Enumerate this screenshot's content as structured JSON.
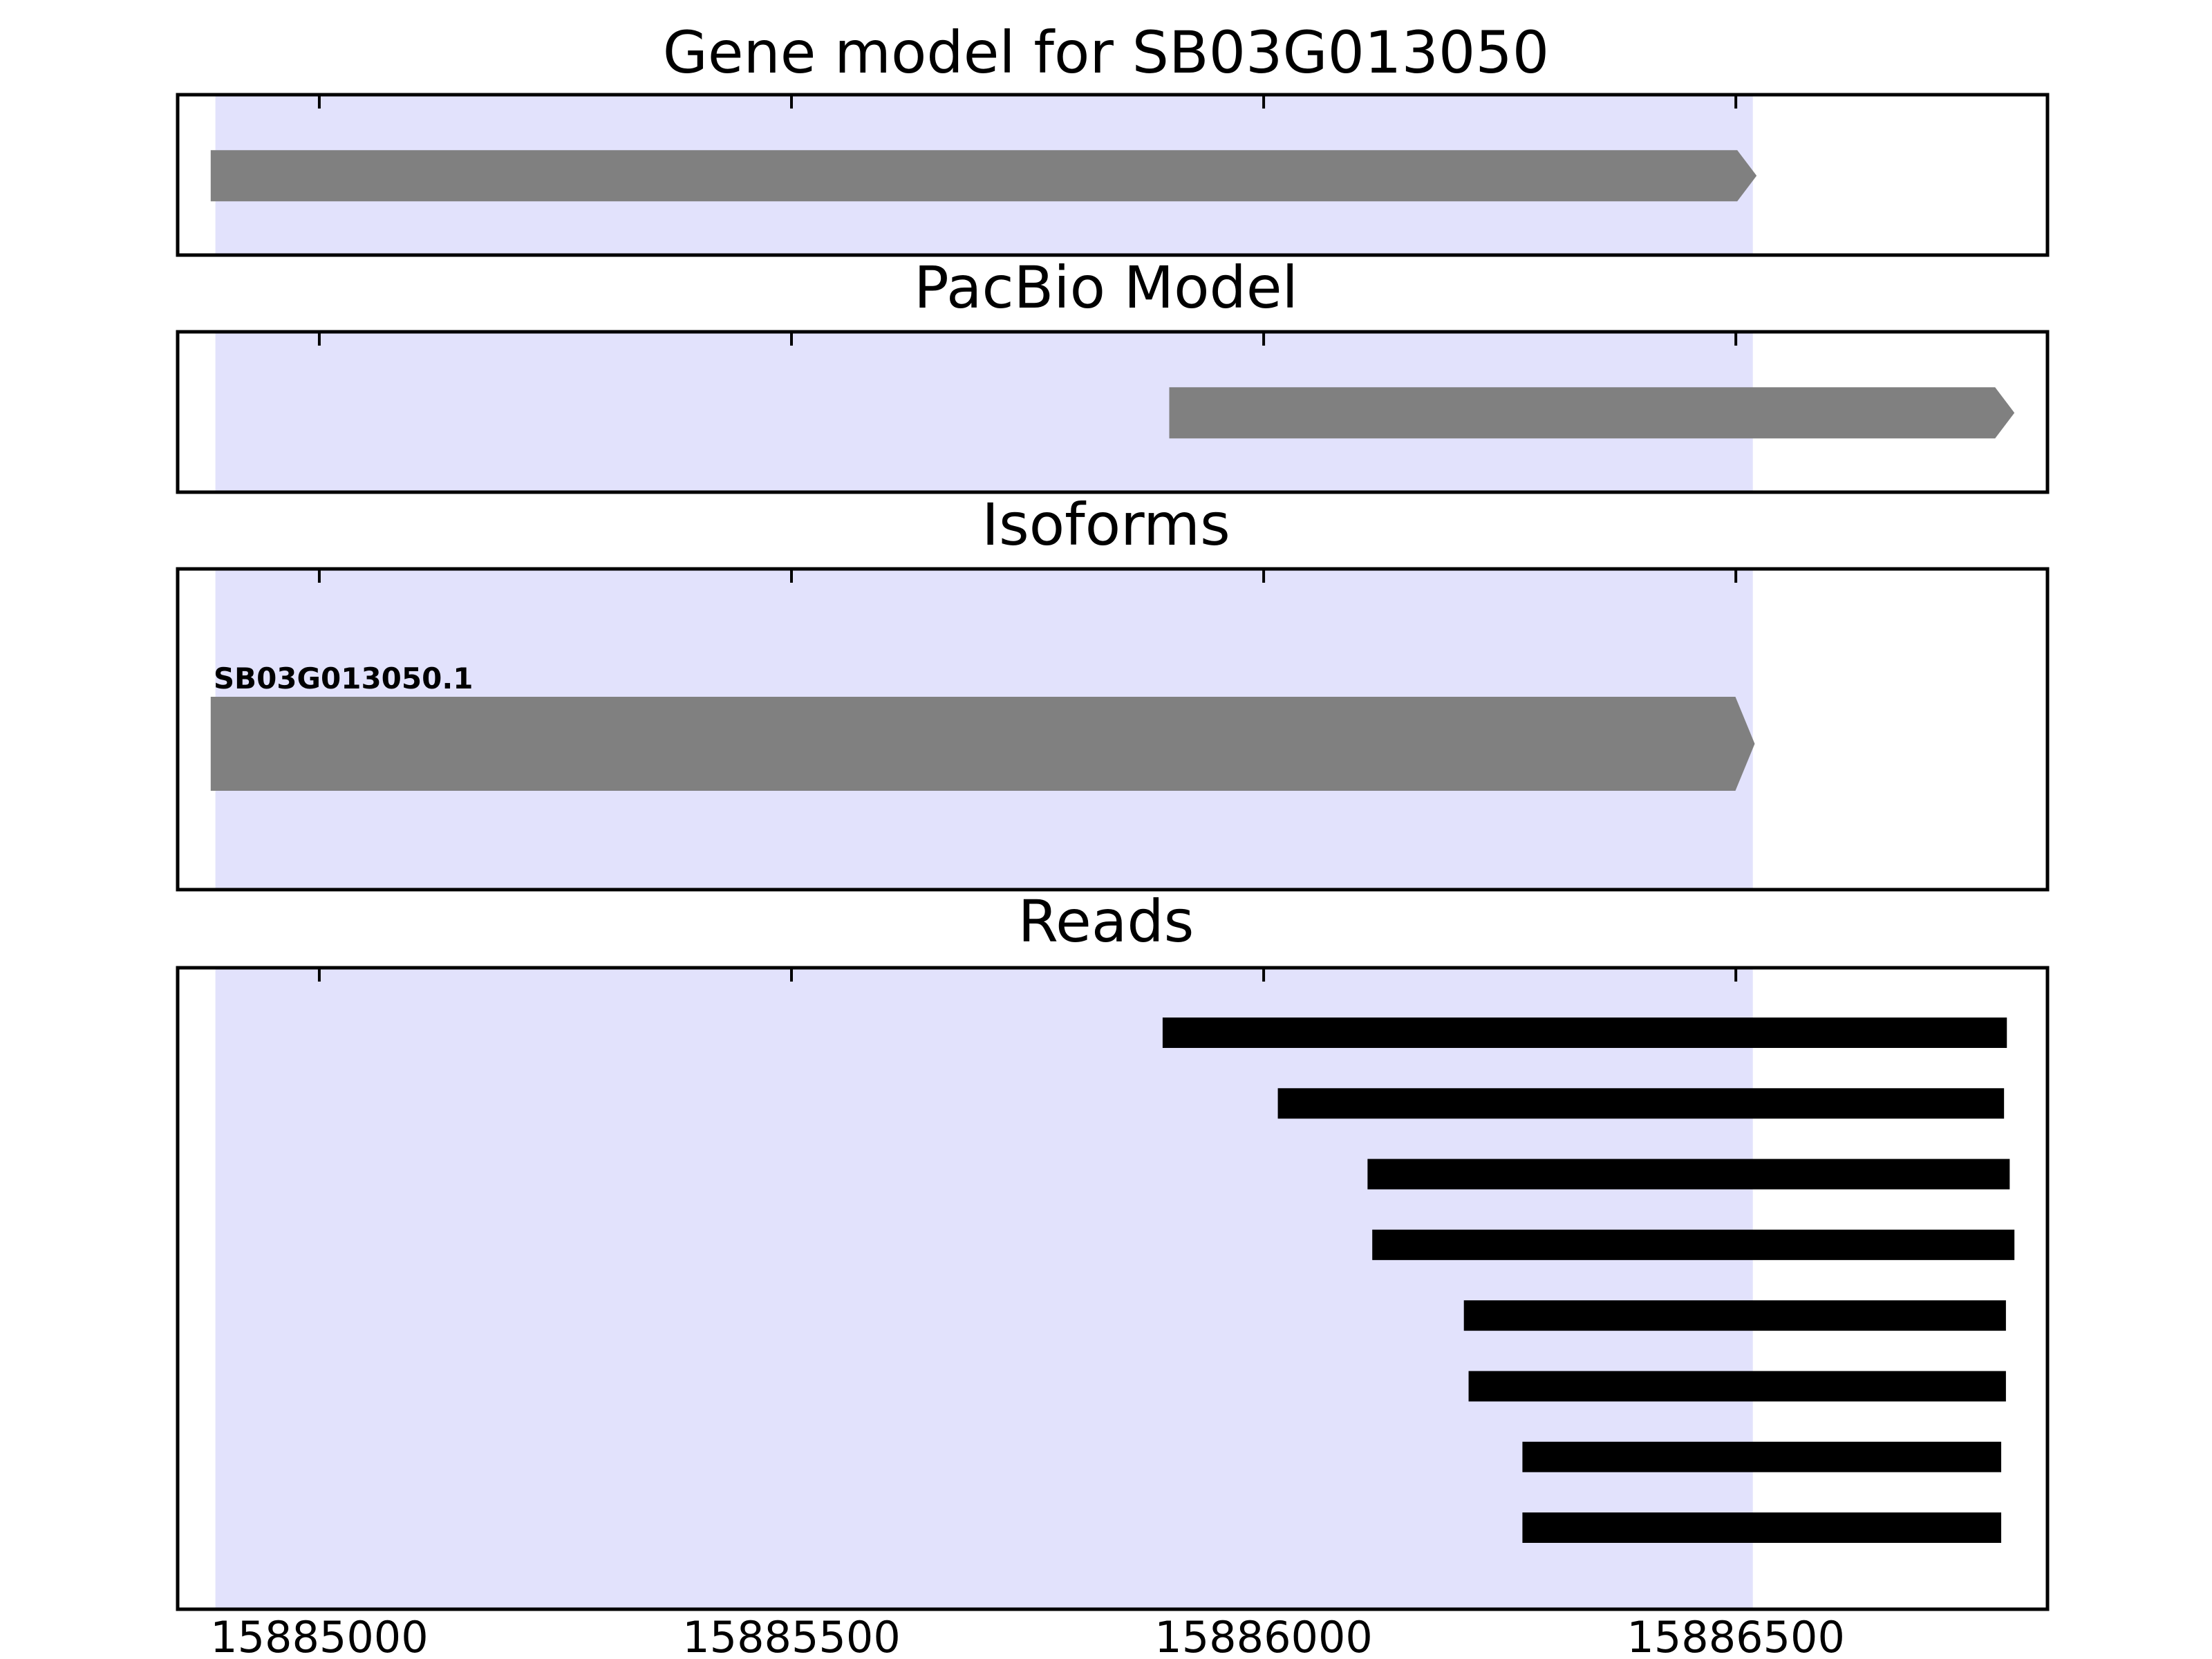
{
  "chart_data": {
    "type": "gene-track",
    "x_range": [
      15884850,
      15886830
    ],
    "x_ticks": [
      15885000,
      15885500,
      15886000,
      15886500
    ],
    "x_tick_labels": [
      "15885000",
      "15885500",
      "15886000",
      "15886500"
    ],
    "highlight": {
      "start": 15884890,
      "end": 15886518,
      "color": "#e2e2fc"
    },
    "feature_color": "#808080",
    "read_color": "#000000",
    "panels": [
      {
        "title": "Gene model for SB03G013050",
        "features": [
          {
            "start": 15884885,
            "end": 15886522,
            "strand": "+"
          }
        ]
      },
      {
        "title": "PacBio Model",
        "features": [
          {
            "start": 15885900,
            "end": 15886795,
            "strand": "+"
          }
        ]
      },
      {
        "title": "Isoforms",
        "features": [
          {
            "start": 15884885,
            "end": 15886520,
            "strand": "+",
            "label": "SB03G013050.1"
          }
        ]
      },
      {
        "title": "Reads",
        "reads": [
          {
            "start": 15885893,
            "end": 15886787
          },
          {
            "start": 15886015,
            "end": 15886784
          },
          {
            "start": 15886110,
            "end": 15886790
          },
          {
            "start": 15886115,
            "end": 15886795
          },
          {
            "start": 15886212,
            "end": 15886786
          },
          {
            "start": 15886217,
            "end": 15886786
          },
          {
            "start": 15886274,
            "end": 15886781
          },
          {
            "start": 15886274,
            "end": 15886781
          }
        ]
      }
    ]
  }
}
